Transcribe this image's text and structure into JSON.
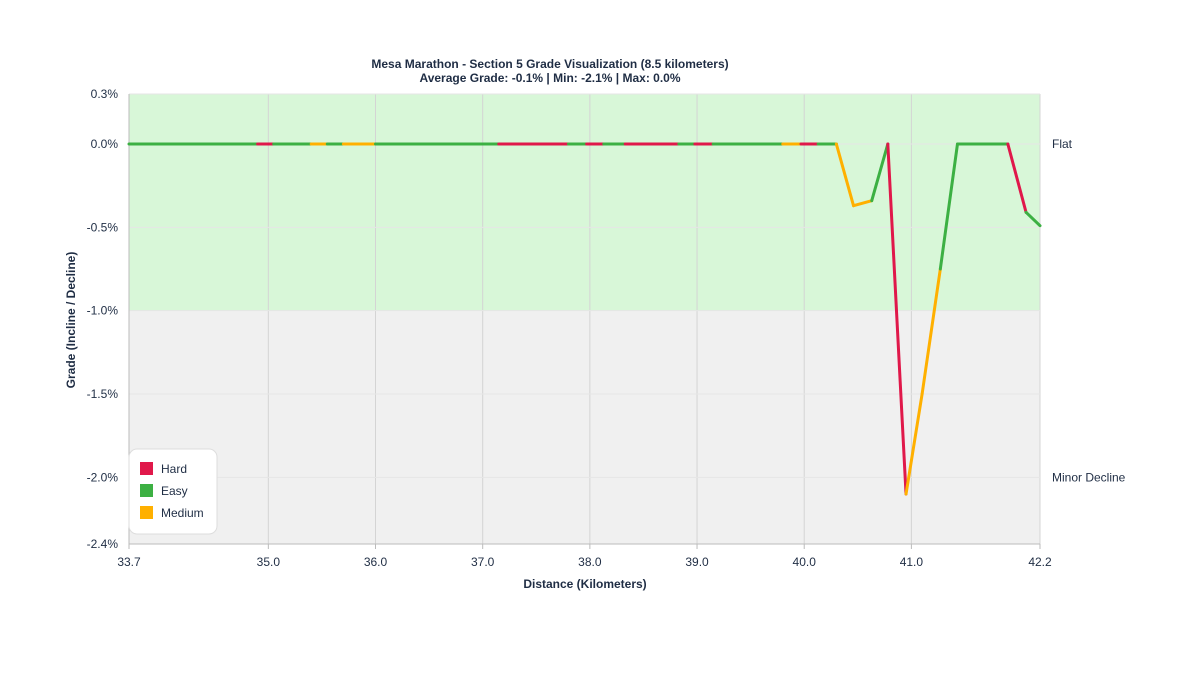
{
  "chart_data": {
    "type": "line",
    "title": "Mesa Marathon - Section 5 Grade Visualization (8.5 kilometers)",
    "subtitle": "Average Grade: -0.1% | Min: -2.1% | Max: 0.0%",
    "xlabel": "Distance (Kilometers)",
    "ylabel": "Grade (Incline / Decline)",
    "xlim": [
      33.7,
      42.2
    ],
    "ylim": [
      -2.4,
      0.3
    ],
    "x_ticks": [
      {
        "value": 33.7,
        "label": "33.7"
      },
      {
        "value": 35.0,
        "label": "35.0"
      },
      {
        "value": 36.0,
        "label": "36.0"
      },
      {
        "value": 37.0,
        "label": "37.0"
      },
      {
        "value": 38.0,
        "label": "38.0"
      },
      {
        "value": 39.0,
        "label": "39.0"
      },
      {
        "value": 40.0,
        "label": "40.0"
      },
      {
        "value": 41.0,
        "label": "41.0"
      },
      {
        "value": 42.2,
        "label": "42.2"
      }
    ],
    "y_ticks": [
      {
        "value": 0.3,
        "label": "0.3%"
      },
      {
        "value": 0.0,
        "label": "0.0%"
      },
      {
        "value": -0.5,
        "label": "-0.5%"
      },
      {
        "value": -1.0,
        "label": "-1.0%"
      },
      {
        "value": -1.5,
        "label": "-1.5%"
      },
      {
        "value": -2.0,
        "label": "-2.0%"
      },
      {
        "value": -2.4,
        "label": "-2.4%"
      }
    ],
    "grid": true,
    "bands": [
      {
        "from": -1.0,
        "to": 0.3,
        "color": "#d8f7d8",
        "label": "Flat",
        "label_value": 0.0
      },
      {
        "from": -2.4,
        "to": -1.0,
        "color": "#f0f0f0",
        "label": "Minor Decline",
        "label_value": -2.0
      }
    ],
    "categories_colors": {
      "Hard": "#e0184a",
      "Easy": "#3cb043",
      "Medium": "#ffb000"
    },
    "legend": {
      "position": "bottom-left",
      "entries": [
        "Hard",
        "Easy",
        "Medium"
      ]
    },
    "segments": [
      {
        "x0": 33.7,
        "y0": 0.0,
        "x1": 34.9,
        "y1": 0.0,
        "category": "Easy"
      },
      {
        "x0": 34.9,
        "y0": 0.0,
        "x1": 35.05,
        "y1": 0.0,
        "category": "Hard"
      },
      {
        "x0": 35.05,
        "y0": 0.0,
        "x1": 35.4,
        "y1": 0.0,
        "category": "Easy"
      },
      {
        "x0": 35.4,
        "y0": 0.0,
        "x1": 35.55,
        "y1": 0.0,
        "category": "Medium"
      },
      {
        "x0": 35.55,
        "y0": 0.0,
        "x1": 35.7,
        "y1": 0.0,
        "category": "Easy"
      },
      {
        "x0": 35.7,
        "y0": 0.0,
        "x1": 36.0,
        "y1": 0.0,
        "category": "Medium"
      },
      {
        "x0": 36.0,
        "y0": 0.0,
        "x1": 37.15,
        "y1": 0.0,
        "category": "Easy"
      },
      {
        "x0": 37.15,
        "y0": 0.0,
        "x1": 37.8,
        "y1": 0.0,
        "category": "Hard"
      },
      {
        "x0": 37.8,
        "y0": 0.0,
        "x1": 37.97,
        "y1": 0.0,
        "category": "Easy"
      },
      {
        "x0": 37.97,
        "y0": 0.0,
        "x1": 38.13,
        "y1": 0.0,
        "category": "Hard"
      },
      {
        "x0": 38.13,
        "y0": 0.0,
        "x1": 38.33,
        "y1": 0.0,
        "category": "Easy"
      },
      {
        "x0": 38.33,
        "y0": 0.0,
        "x1": 38.83,
        "y1": 0.0,
        "category": "Hard"
      },
      {
        "x0": 38.83,
        "y0": 0.0,
        "x1": 38.98,
        "y1": 0.0,
        "category": "Easy"
      },
      {
        "x0": 38.98,
        "y0": 0.0,
        "x1": 39.15,
        "y1": 0.0,
        "category": "Hard"
      },
      {
        "x0": 39.15,
        "y0": 0.0,
        "x1": 39.8,
        "y1": 0.0,
        "category": "Easy"
      },
      {
        "x0": 39.8,
        "y0": 0.0,
        "x1": 39.97,
        "y1": 0.0,
        "category": "Medium"
      },
      {
        "x0": 39.97,
        "y0": 0.0,
        "x1": 40.13,
        "y1": 0.0,
        "category": "Hard"
      },
      {
        "x0": 40.13,
        "y0": 0.0,
        "x1": 40.3,
        "y1": 0.0,
        "category": "Easy"
      },
      {
        "x0": 40.3,
        "y0": 0.0,
        "x1": 40.46,
        "y1": -0.37,
        "category": "Medium"
      },
      {
        "x0": 40.46,
        "y0": -0.37,
        "x1": 40.63,
        "y1": -0.34,
        "category": "Medium"
      },
      {
        "x0": 40.63,
        "y0": -0.34,
        "x1": 40.78,
        "y1": 0.0,
        "category": "Easy"
      },
      {
        "x0": 40.78,
        "y0": 0.0,
        "x1": 40.95,
        "y1": -2.1,
        "category": "Hard"
      },
      {
        "x0": 40.95,
        "y0": -2.1,
        "x1": 41.1,
        "y1": -1.5,
        "category": "Medium"
      },
      {
        "x0": 41.1,
        "y0": -1.5,
        "x1": 41.27,
        "y1": -0.75,
        "category": "Medium"
      },
      {
        "x0": 41.27,
        "y0": -0.75,
        "x1": 41.43,
        "y1": 0.0,
        "category": "Easy"
      },
      {
        "x0": 41.43,
        "y0": 0.0,
        "x1": 41.9,
        "y1": 0.0,
        "category": "Easy"
      },
      {
        "x0": 41.9,
        "y0": 0.0,
        "x1": 42.07,
        "y1": -0.41,
        "category": "Hard"
      },
      {
        "x0": 42.07,
        "y0": -0.41,
        "x1": 42.2,
        "y1": -0.49,
        "category": "Easy"
      }
    ]
  }
}
